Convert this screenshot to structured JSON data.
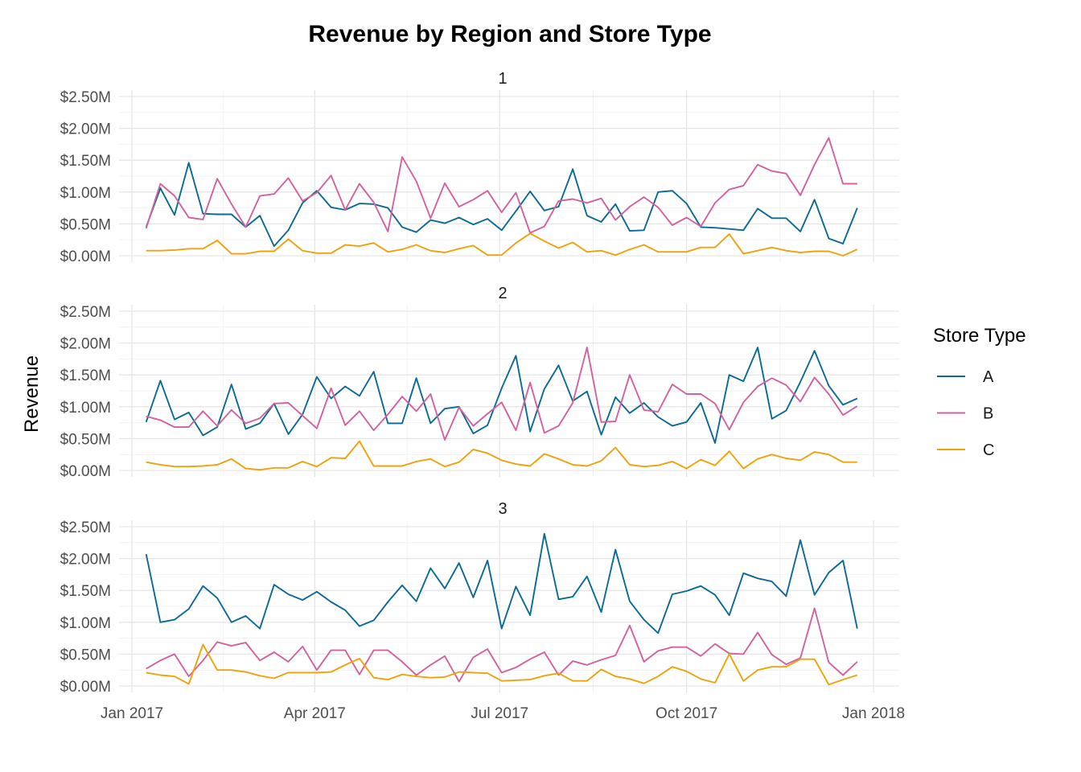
{
  "chart_data": {
    "type": "line",
    "title": "Revenue by Region and Store Type",
    "xlabel": "",
    "ylabel": "Revenue",
    "ylim": [
      0,
      2500000
    ],
    "y_ticks": [
      "$0.00M",
      "$0.50M",
      "$1.00M",
      "$1.50M",
      "$2.00M",
      "$2.50M"
    ],
    "y_tick_values": [
      0,
      500000,
      1000000,
      1500000,
      2000000,
      2500000
    ],
    "x_ticks": [
      "Jan 2017",
      "Apr 2017",
      "Jul 2017",
      "Oct 2017",
      "Jan 2018"
    ],
    "x_tick_dates": [
      "2017-01-01",
      "2017-04-01",
      "2017-07-01",
      "2017-10-01",
      "2018-01-01"
    ],
    "x_start": "2017-01-08",
    "x_step_days": 7,
    "grid": true,
    "legend": {
      "title": "Store Type",
      "position": "right",
      "entries": [
        {
          "name": "A",
          "color": "#0b6a95"
        },
        {
          "name": "B",
          "color": "#d3619f"
        },
        {
          "name": "C",
          "color": "#f0a20a"
        }
      ]
    },
    "panels": [
      {
        "label": "1",
        "series": [
          {
            "name": "A",
            "values": [
              450000,
              1060000,
              640000,
              1460000,
              660000,
              650000,
              650000,
              450000,
              630000,
              150000,
              400000,
              830000,
              1020000,
              760000,
              720000,
              820000,
              810000,
              750000,
              450000,
              370000,
              560000,
              510000,
              600000,
              490000,
              580000,
              400000,
              700000,
              1010000,
              710000,
              770000,
              1360000,
              630000,
              530000,
              810000,
              390000,
              400000,
              1000000,
              1020000,
              820000,
              450000,
              440000,
              420000,
              400000,
              740000,
              590000,
              590000,
              380000,
              880000,
              270000,
              190000,
              750000
            ]
          },
          {
            "name": "B",
            "values": [
              430000,
              1130000,
              940000,
              600000,
              570000,
              1210000,
              810000,
              450000,
              940000,
              970000,
              1220000,
              860000,
              990000,
              1260000,
              720000,
              1130000,
              840000,
              380000,
              1550000,
              1170000,
              590000,
              1140000,
              770000,
              880000,
              1020000,
              680000,
              990000,
              360000,
              460000,
              860000,
              890000,
              830000,
              900000,
              560000,
              770000,
              920000,
              760000,
              480000,
              600000,
              460000,
              830000,
              1040000,
              1100000,
              1430000,
              1330000,
              1290000,
              950000,
              1430000,
              1850000,
              1130000,
              1130000
            ]
          },
          {
            "name": "C",
            "values": [
              80000,
              80000,
              90000,
              110000,
              110000,
              240000,
              30000,
              30000,
              70000,
              70000,
              260000,
              80000,
              40000,
              40000,
              170000,
              150000,
              200000,
              60000,
              100000,
              170000,
              80000,
              50000,
              110000,
              160000,
              10000,
              10000,
              200000,
              350000,
              230000,
              120000,
              210000,
              60000,
              80000,
              10000,
              100000,
              170000,
              60000,
              60000,
              60000,
              130000,
              130000,
              340000,
              30000,
              80000,
              130000,
              80000,
              50000,
              70000,
              70000,
              0,
              100000
            ]
          }
        ]
      },
      {
        "label": "2",
        "series": [
          {
            "name": "A",
            "values": [
              760000,
              1410000,
              800000,
              910000,
              550000,
              680000,
              1350000,
              650000,
              740000,
              1050000,
              570000,
              880000,
              1470000,
              1130000,
              1320000,
              1170000,
              1550000,
              740000,
              740000,
              1450000,
              740000,
              970000,
              1000000,
              580000,
              710000,
              1290000,
              1800000,
              610000,
              1280000,
              1650000,
              1090000,
              1240000,
              560000,
              1150000,
              900000,
              1060000,
              840000,
              700000,
              760000,
              1060000,
              430000,
              1500000,
              1400000,
              1930000,
              810000,
              940000,
              1390000,
              1880000,
              1330000,
              1030000,
              1130000
            ]
          },
          {
            "name": "B",
            "values": [
              850000,
              790000,
              680000,
              680000,
              930000,
              700000,
              950000,
              740000,
              820000,
              1050000,
              1060000,
              860000,
              660000,
              1290000,
              710000,
              930000,
              630000,
              880000,
              1160000,
              930000,
              1200000,
              480000,
              990000,
              700000,
              890000,
              1070000,
              630000,
              1380000,
              590000,
              700000,
              1060000,
              1930000,
              760000,
              770000,
              1500000,
              950000,
              920000,
              1350000,
              1200000,
              1200000,
              1050000,
              640000,
              1070000,
              1320000,
              1450000,
              1340000,
              1080000,
              1460000,
              1200000,
              870000,
              1010000
            ]
          },
          {
            "name": "C",
            "values": [
              130000,
              90000,
              60000,
              60000,
              70000,
              90000,
              180000,
              30000,
              10000,
              40000,
              40000,
              140000,
              60000,
              200000,
              190000,
              460000,
              70000,
              70000,
              70000,
              140000,
              180000,
              60000,
              130000,
              330000,
              270000,
              160000,
              100000,
              70000,
              260000,
              180000,
              90000,
              70000,
              150000,
              360000,
              90000,
              60000,
              80000,
              140000,
              30000,
              170000,
              80000,
              300000,
              30000,
              180000,
              250000,
              190000,
              160000,
              290000,
              250000,
              130000,
              130000
            ]
          }
        ]
      },
      {
        "label": "3",
        "series": [
          {
            "name": "A",
            "values": [
              2070000,
              1000000,
              1040000,
              1210000,
              1570000,
              1380000,
              1000000,
              1100000,
              900000,
              1590000,
              1440000,
              1350000,
              1480000,
              1320000,
              1190000,
              940000,
              1030000,
              1320000,
              1580000,
              1330000,
              1850000,
              1530000,
              1930000,
              1390000,
              1970000,
              900000,
              1560000,
              1110000,
              2390000,
              1360000,
              1400000,
              1720000,
              1160000,
              2140000,
              1330000,
              1040000,
              830000,
              1440000,
              1490000,
              1570000,
              1430000,
              1110000,
              1770000,
              1690000,
              1640000,
              1410000,
              2290000,
              1430000,
              1780000,
              1970000,
              900000
            ]
          },
          {
            "name": "B",
            "values": [
              270000,
              400000,
              500000,
              150000,
              400000,
              690000,
              630000,
              680000,
              400000,
              530000,
              380000,
              620000,
              250000,
              560000,
              560000,
              180000,
              560000,
              560000,
              380000,
              170000,
              330000,
              470000,
              70000,
              450000,
              580000,
              210000,
              290000,
              420000,
              530000,
              170000,
              390000,
              330000,
              410000,
              480000,
              950000,
              380000,
              550000,
              610000,
              610000,
              470000,
              660000,
              510000,
              500000,
              840000,
              490000,
              340000,
              440000,
              1220000,
              370000,
              170000,
              380000
            ]
          },
          {
            "name": "C",
            "values": [
              210000,
              170000,
              150000,
              30000,
              650000,
              250000,
              250000,
              220000,
              160000,
              120000,
              210000,
              210000,
              210000,
              220000,
              330000,
              430000,
              130000,
              100000,
              180000,
              150000,
              130000,
              140000,
              220000,
              210000,
              200000,
              80000,
              90000,
              100000,
              160000,
              200000,
              80000,
              80000,
              260000,
              150000,
              110000,
              40000,
              150000,
              300000,
              230000,
              110000,
              50000,
              500000,
              80000,
              250000,
              300000,
              300000,
              420000,
              420000,
              20000,
              100000,
              170000
            ]
          }
        ]
      }
    ]
  }
}
